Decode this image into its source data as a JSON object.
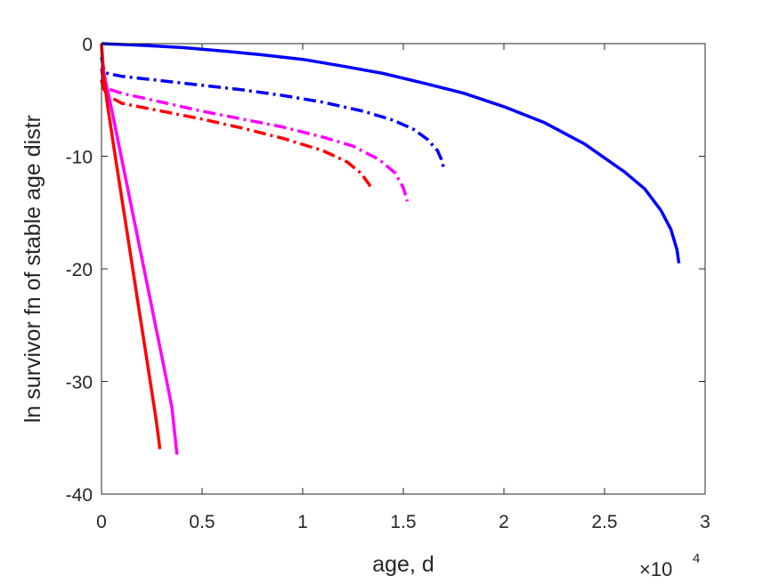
{
  "chart_data": {
    "type": "line",
    "title": "",
    "xlabel": "age, d",
    "ylabel": "ln survivor fn of stable age distr",
    "x_exponent_label": "×10",
    "x_exponent_power": "4",
    "xlim": [
      0,
      30000
    ],
    "ylim": [
      -40,
      0
    ],
    "xticks": [
      0,
      5000,
      10000,
      15000,
      20000,
      25000,
      30000
    ],
    "xtick_labels": [
      "0",
      "0.5",
      "1",
      "1.5",
      "2",
      "2.5",
      "3"
    ],
    "yticks": [
      0,
      -10,
      -20,
      -30,
      -40
    ],
    "ytick_labels": [
      "0",
      "-10",
      "-20",
      "-30",
      "-40"
    ],
    "grid": false,
    "legend": "none",
    "series": [
      {
        "color": "#0000ff",
        "dash": "solid",
        "x": [
          0,
          2000,
          4000,
          6000,
          8000,
          10000,
          12000,
          14000,
          16000,
          18000,
          20000,
          22000,
          24000,
          26000,
          27000,
          27800,
          28300,
          28600,
          28700
        ],
        "y": [
          0,
          -0.15,
          -0.35,
          -0.65,
          -1.0,
          -1.4,
          -2.0,
          -2.65,
          -3.5,
          -4.4,
          -5.6,
          -7.0,
          -8.9,
          -11.4,
          -12.9,
          -14.8,
          -16.5,
          -18.3,
          -19.5
        ]
      },
      {
        "color": "#0000ff",
        "dash": "dashdot",
        "x": [
          0,
          100,
          200,
          1000,
          3000,
          5000,
          7000,
          9000,
          11000,
          13000,
          14500,
          15500,
          16200,
          16700,
          16900,
          17000
        ],
        "y": [
          -1.2,
          -2.2,
          -2.6,
          -2.9,
          -3.3,
          -3.7,
          -4.1,
          -4.6,
          -5.2,
          -6.0,
          -6.8,
          -7.6,
          -8.5,
          -9.5,
          -10.3,
          -11.0
        ]
      },
      {
        "color": "#ff00ff",
        "dash": "dashdot",
        "x": [
          0,
          100,
          300,
          1000,
          3000,
          5000,
          7000,
          9000,
          11000,
          12500,
          13800,
          14600,
          15000,
          15200
        ],
        "y": [
          -2.2,
          -3.5,
          -4.0,
          -4.4,
          -5.2,
          -6.0,
          -6.7,
          -7.4,
          -8.3,
          -9.1,
          -10.3,
          -11.5,
          -12.8,
          -14.0
        ]
      },
      {
        "color": "#ff0000",
        "dash": "dashdot",
        "x": [
          0,
          100,
          300,
          1000,
          3000,
          5000,
          7000,
          9000,
          11000,
          12200,
          12900,
          13300,
          13450
        ],
        "y": [
          -3.2,
          -4.0,
          -4.6,
          -5.3,
          -6.0,
          -6.7,
          -7.5,
          -8.4,
          -9.5,
          -10.5,
          -11.5,
          -12.5,
          -13.0
        ]
      },
      {
        "color": "#ff00ff",
        "dash": "solid",
        "x": [
          0,
          100,
          500,
          1000,
          1500,
          2000,
          2500,
          3000,
          3500,
          3750
        ],
        "y": [
          0,
          -2.5,
          -5.8,
          -10.2,
          -14.6,
          -19.0,
          -23.4,
          -27.8,
          -32.3,
          -36.5
        ]
      },
      {
        "color": "#ff0000",
        "dash": "solid",
        "x": [
          0,
          80,
          300,
          700,
          1100,
          1500,
          1900,
          2300,
          2700,
          2850,
          2900
        ],
        "y": [
          0,
          -2.5,
          -5.5,
          -10.2,
          -14.8,
          -19.4,
          -24.0,
          -28.6,
          -33.2,
          -35.2,
          -36.0
        ]
      }
    ]
  }
}
